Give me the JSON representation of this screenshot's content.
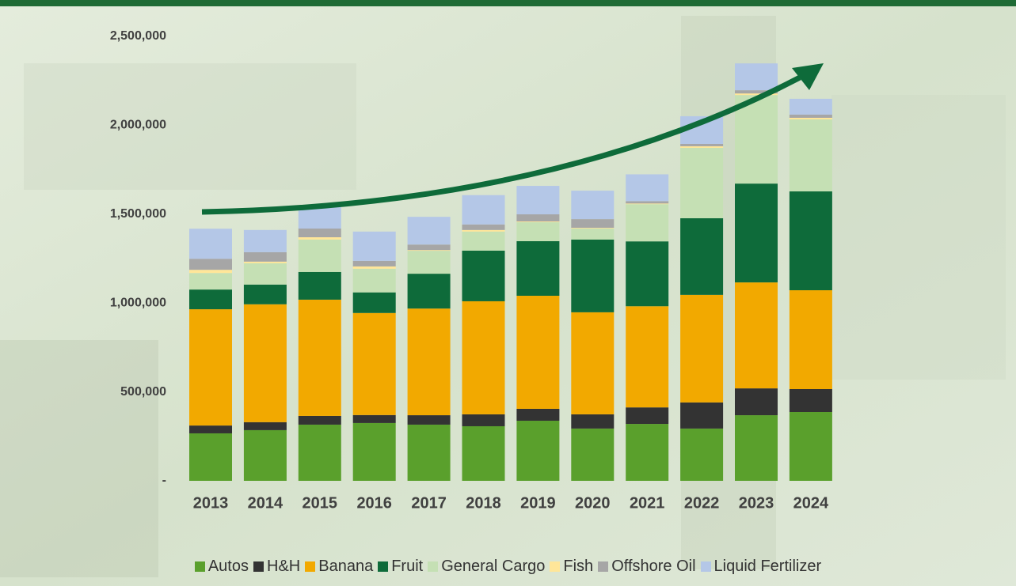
{
  "chart_data": {
    "type": "stacked_bar",
    "categories": [
      "2013",
      "2014",
      "2015",
      "2016",
      "2017",
      "2018",
      "2019",
      "2020",
      "2021",
      "2022",
      "2023",
      "2024"
    ],
    "series": [
      {
        "name": "Autos",
        "color": "#5aa02c",
        "values": [
          267000,
          285000,
          316000,
          325000,
          316000,
          307000,
          338000,
          294000,
          320000,
          294000,
          369000,
          387000
        ]
      },
      {
        "name": "H&H",
        "color": "#333333",
        "values": [
          44000,
          45000,
          49000,
          45000,
          53000,
          67000,
          67000,
          80000,
          93000,
          147000,
          151000,
          129000
        ]
      },
      {
        "name": "Banana",
        "color": "#f2a900",
        "values": [
          654000,
          663000,
          654000,
          574000,
          600000,
          636000,
          636000,
          574000,
          569000,
          605000,
          596000,
          556000
        ]
      },
      {
        "name": "Fruit",
        "color": "#0e6b3a",
        "values": [
          111000,
          111000,
          156000,
          116000,
          196000,
          285000,
          307000,
          409000,
          365000,
          431000,
          556000,
          556000
        ]
      },
      {
        "name": "General Cargo",
        "color": "#c5e0b4",
        "values": [
          93000,
          120000,
          182000,
          133000,
          129000,
          107000,
          107000,
          62000,
          209000,
          396000,
          498000,
          405000
        ]
      },
      {
        "name": "Fish",
        "color": "#ffe699",
        "values": [
          18000,
          9000,
          13000,
          13000,
          4000,
          9000,
          4000,
          4000,
          4000,
          9000,
          9000,
          9000
        ]
      },
      {
        "name": "Offshore Oil",
        "color": "#a6a6a6",
        "values": [
          62000,
          53000,
          49000,
          31000,
          31000,
          31000,
          40000,
          49000,
          13000,
          13000,
          18000,
          18000
        ]
      },
      {
        "name": "Liquid Fertilizer",
        "color": "#b4c7e7",
        "values": [
          169000,
          125000,
          120000,
          165000,
          156000,
          165000,
          160000,
          160000,
          151000,
          156000,
          151000,
          89000
        ]
      }
    ],
    "ylim": [
      0,
      2500000
    ],
    "yticks": [
      {
        "value": 0,
        "label": "-"
      },
      {
        "value": 500000,
        "label": "500,000"
      },
      {
        "value": 1000000,
        "label": "1,000,000"
      },
      {
        "value": 1500000,
        "label": "1,500,000"
      },
      {
        "value": 2000000,
        "label": "2,000,000"
      },
      {
        "value": 2500000,
        "label": "2,500,000"
      }
    ],
    "legend": "bottom"
  }
}
